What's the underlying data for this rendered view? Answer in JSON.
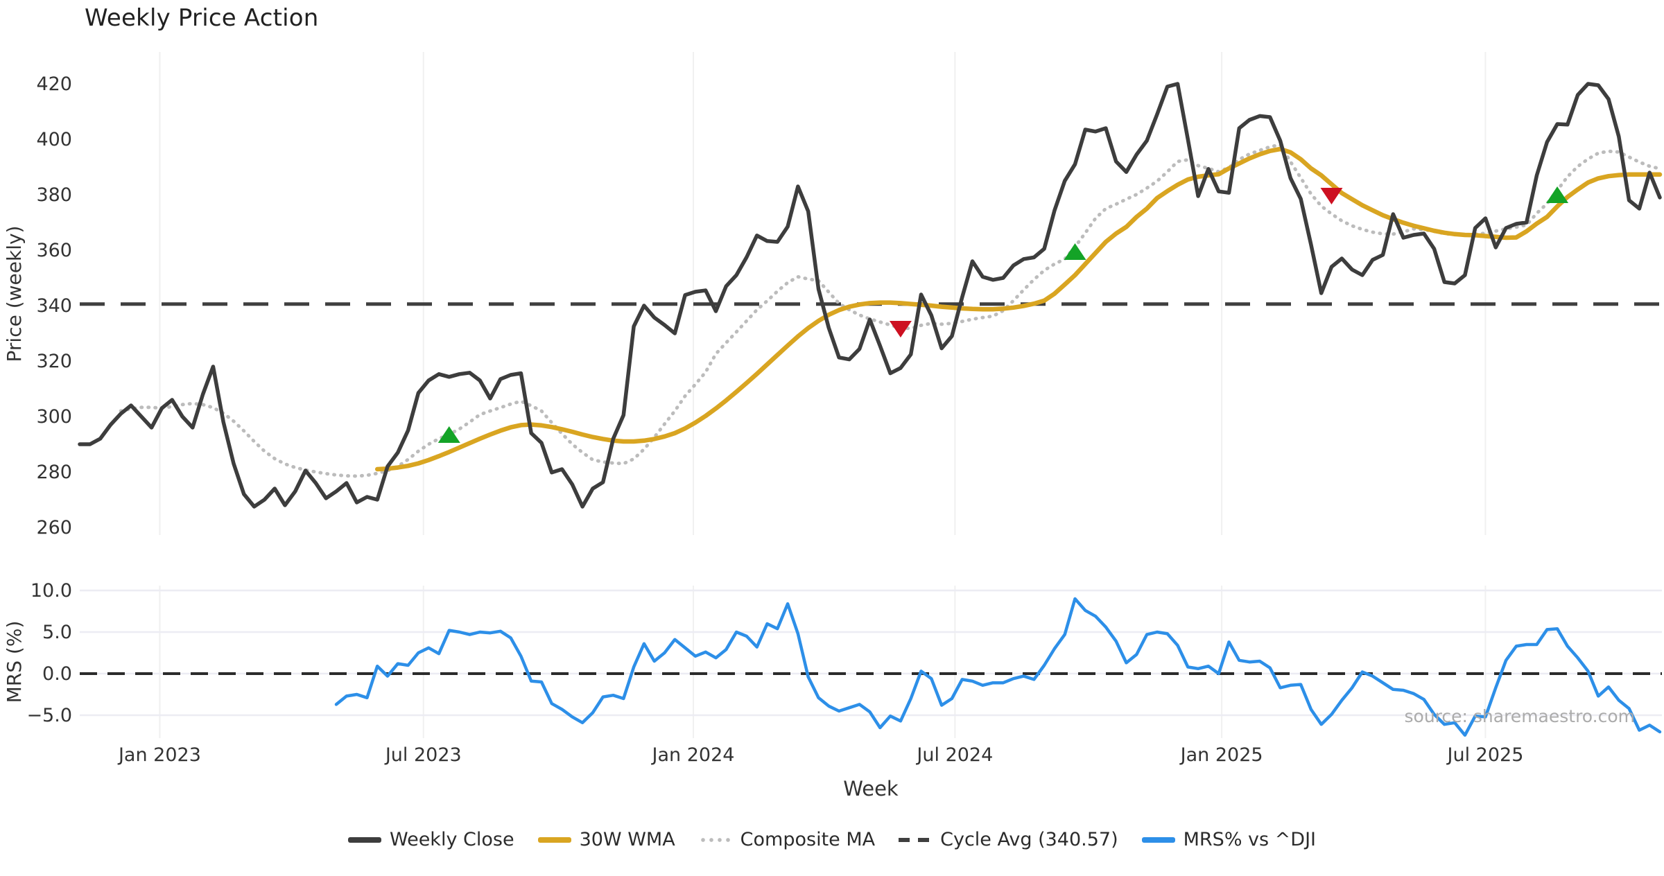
{
  "title": "Weekly Price Action",
  "watermark": "source: sharemaestro.com",
  "xlabel": "Week",
  "xticks": [
    "Jan 2023",
    "Jul 2023",
    "Jan 2024",
    "Jul 2024",
    "Jan 2025",
    "Jul 2025"
  ],
  "price_panel": {
    "ylabel": "Price (weekly)",
    "yticks": [
      420,
      400,
      380,
      360,
      340,
      320,
      300,
      280,
      260
    ]
  },
  "mrs_panel": {
    "ylabel": "MRS (%)",
    "yticks": [
      {
        "label": "10.0",
        "v": 10
      },
      {
        "label": "5.0",
        "v": 5
      },
      {
        "label": "0.0",
        "v": 0
      },
      {
        "label": "−5.0",
        "v": -5
      }
    ]
  },
  "legend": {
    "items": [
      {
        "label": "Weekly Close",
        "style": "solid",
        "color": "#3d3d3d"
      },
      {
        "label": "30W WMA",
        "style": "solid",
        "color": "#d9a521"
      },
      {
        "label": "Composite MA",
        "style": "dotted",
        "color": "#bcbcbc"
      },
      {
        "label": "Cycle Avg (340.57)",
        "style": "dashed",
        "color": "#3f3f3f"
      },
      {
        "label": "MRS% vs ^DJI",
        "style": "solid",
        "color": "#2d8fe8"
      }
    ]
  },
  "chart_data": {
    "type": "line",
    "title": "Weekly Price Action",
    "xlabel": "Week",
    "x_unit": "weekly index, week 0 = early Nov 2022",
    "weeks_span": 154.2,
    "tick_weeks": [
      7.8,
      33.5,
      59.8,
      85.3,
      111.3,
      137.0
    ],
    "tick_labels": [
      "Jan 2023",
      "Jul 2023",
      "Jan 2024",
      "Jul 2024",
      "Jan 2025",
      "Jul 2025"
    ],
    "grid": true,
    "legend_position": "bottom-center",
    "panels": [
      {
        "name": "price",
        "ylabel": "Price (weekly)",
        "ylim": [
          257.25,
          431.5
        ],
        "yticks": [
          420,
          400,
          380,
          360,
          340,
          320,
          300,
          280,
          260
        ],
        "cycle_avg": 340.57,
        "series": [
          {
            "name": "Weekly Close",
            "color": "#3d3d3d",
            "style": "solid",
            "width": 5.5,
            "start_week": 0,
            "values": [
              290,
              290,
              292,
              297,
              301,
              304,
              300,
              296,
              303,
              306,
              300,
              296,
              308,
              318,
              298,
              283,
              272,
              267.5,
              270,
              274,
              268,
              273,
              280.5,
              276,
              270.5,
              273,
              276,
              269,
              271,
              270,
              282,
              287,
              295,
              308.5,
              313,
              315.3,
              314.3,
              315.3,
              315.8,
              313,
              306.5,
              313.5,
              315,
              315.6,
              294,
              290.5,
              279.8,
              281,
              275.5,
              267.5,
              274,
              276.3,
              292,
              300.5,
              332.5,
              340,
              335.7,
              333,
              330,
              343.8,
              345,
              345.5,
              338,
              347,
              351,
              357.5,
              365.3,
              363.3,
              363,
              368.5,
              383,
              374,
              346,
              332,
              321.3,
              320.6,
              324.4,
              335,
              325.5,
              315.6,
              317.5,
              322.4,
              344,
              336.5,
              324.6,
              329,
              343,
              356,
              350.4,
              349.3,
              350,
              354.5,
              356.8,
              357.4,
              360.5,
              374.3,
              385,
              391,
              403.5,
              402.8,
              404,
              392,
              388.2,
              394.5,
              399.5,
              409,
              419,
              420,
              400,
              379.5,
              389.3,
              381.2,
              380.7,
              404,
              407,
              408.4,
              408,
              399.5,
              386,
              378.5,
              362,
              344.5,
              354,
              357,
              353,
              351,
              356.5,
              358.3,
              373,
              364.5,
              365.5,
              366,
              360.5,
              348.5,
              348,
              351,
              368,
              371.5,
              361,
              368,
              369.5,
              370,
              387,
              399,
              405.5,
              405.3,
              416,
              420,
              419.5,
              414.5,
              401,
              378,
              375,
              388,
              379
            ]
          },
          {
            "name": "30W WMA",
            "color": "#d9a521",
            "style": "solid",
            "width": 6.5,
            "start_week": 29,
            "values": [
              281,
              281.2,
              281.6,
              282.2,
              283.1,
              284.3,
              285.7,
              287.2,
              288.8,
              290.4,
              292,
              293.5,
              294.9,
              296.1,
              296.9,
              297.1,
              296.8,
              296.2,
              295.4,
              294.5,
              293.5,
              292.6,
              291.9,
              291.3,
              291,
              291,
              291.3,
              291.9,
              292.8,
              294,
              295.7,
              297.8,
              300.2,
              302.9,
              305.8,
              308.9,
              312.1,
              315.4,
              318.8,
              322.2,
              325.6,
              328.9,
              331.9,
              334.5,
              336.7,
              338.4,
              339.6,
              340.4,
              340.9,
              341.1,
              341.1,
              340.9,
              340.6,
              340.3,
              340,
              339.6,
              339.3,
              339,
              338.8,
              338.7,
              338.7,
              338.9,
              339.3,
              339.9,
              340.7,
              341.8,
              344.3,
              347.6,
              351,
              355,
              359,
              363,
              366,
              368.4,
              372,
              375,
              378.8,
              381.3,
              383.6,
              385.5,
              386.5,
              387,
              387.4,
              389.5,
              391.3,
              393.1,
              394.6,
              395.8,
              396.5,
              395.3,
              392.8,
              389.5,
              387,
              383.8,
              380.6,
              378.4,
              376.2,
              374.4,
              372.6,
              371.2,
              369.9,
              368.8,
              367.9,
              367,
              366.3,
              365.8,
              365.5,
              365.4,
              365.1,
              364.8,
              364.5,
              364.6,
              366.8,
              369.6,
              372,
              375.8,
              379.2,
              381.9,
              384.4,
              385.9,
              386.7,
              387.1,
              387.3,
              387.3,
              387.3,
              387.3
            ]
          },
          {
            "name": "Composite MA",
            "color": "#bcbcbc",
            "style": "dotted",
            "width": 5,
            "start_week": 4,
            "values": [
              302,
              302.8,
              303.3,
              303.3,
              303,
              303.6,
              304.3,
              304.7,
              304.3,
              303.2,
              301.2,
              298.3,
              294.8,
              291,
              287.5,
              284.8,
              282.9,
              281.6,
              280.7,
              280,
              279.4,
              278.9,
              278.6,
              278.5,
              278.8,
              279.5,
              280.5,
              282,
              284.5,
              287.5,
              290,
              292,
              293.6,
              295.5,
              298,
              300.7,
              302,
              303.2,
              304.5,
              305.5,
              303.9,
              302,
              297.8,
              293.8,
              290,
              287,
              284.4,
              283.6,
              283.2,
              283,
              284.7,
              288.2,
              292.5,
              297.3,
              302,
              307.4,
              311.6,
              316,
              322.6,
              326.6,
              330.5,
              334.5,
              338.5,
              341.7,
              345.2,
              348.3,
              350.4,
              349.6,
              349,
              344.9,
              340.8,
              338.5,
              336.6,
              335.2,
              334.1,
              333,
              331.9,
              331.8,
              332.9,
              333.6,
              333.3,
              333.6,
              334.3,
              335.1,
              335.7,
              336.2,
              338.2,
              341.8,
              345.7,
              349.4,
              352.7,
              355,
              356.8,
              361.2,
              366.2,
              371.5,
              375,
              376.6,
              378.4,
              380.1,
              382.4,
              384.9,
              388.3,
              392,
              392.6,
              390.5,
              389.5,
              388.3,
              389.8,
              392.7,
              394.7,
              396,
              397.3,
              398,
              391.9,
              386.1,
              380.3,
              375.9,
              373.1,
              370.6,
              368.8,
              367.5,
              366.5,
              365.9,
              365.8,
              366.6,
              367.7,
              367.4,
              366.8,
              366,
              365.6,
              365.5,
              365.8,
              366.1,
              366.9,
              367.7,
              368.3,
              369.1,
              373.3,
              376.8,
              381.6,
              386.5,
              390.2,
              392.9,
              395,
              395.7,
              395.4,
              393.6,
              391.8,
              390.3,
              389.4
            ]
          },
          {
            "name": "Cycle Avg",
            "color": "#3f3f3f",
            "style": "dashed",
            "width": 5,
            "constant": 340.57
          }
        ],
        "markers": {
          "buy": {
            "color": "#14a327",
            "shape": "triangle-up",
            "points": [
              {
                "week": 36,
                "price": 293.5
              },
              {
                "week": 97,
                "price": 359.5
              },
              {
                "week": 144,
                "price": 380
              }
            ]
          },
          "sell": {
            "color": "#cd1021",
            "shape": "triangle-down",
            "points": [
              {
                "week": 80,
                "price": 331.5
              },
              {
                "week": 122,
                "price": 379.5
              }
            ]
          }
        }
      },
      {
        "name": "mrs",
        "ylabel": "MRS (%)",
        "ylim": [
          -7.75,
          10.58
        ],
        "yticks": [
          10,
          5,
          0,
          -5
        ],
        "zero_line": 0,
        "gridline_values": [
          10,
          5,
          -5
        ],
        "series": [
          {
            "name": "MRS% vs ^DJI",
            "color": "#2d8fe8",
            "style": "solid",
            "width": 4.5,
            "start_week": 25,
            "values": [
              -3.7,
              -2.7,
              -2.5,
              -2.9,
              0.9,
              -0.3,
              1.2,
              1.0,
              2.5,
              3.1,
              2.4,
              5.2,
              5.0,
              4.7,
              5.0,
              4.9,
              5.1,
              4.3,
              2.1,
              -0.9,
              -1.0,
              -3.6,
              -4.3,
              -5.2,
              -5.9,
              -4.7,
              -2.8,
              -2.6,
              -3.0,
              0.8,
              3.6,
              1.5,
              2.5,
              4.1,
              3.1,
              2.1,
              2.6,
              1.9,
              2.9,
              5.0,
              4.5,
              3.2,
              6.0,
              5.4,
              8.4,
              4.8,
              -0.4,
              -2.9,
              -3.9,
              -4.5,
              -4.1,
              -3.7,
              -4.6,
              -6.5,
              -5.1,
              -5.7,
              -3.0,
              0.3,
              -0.6,
              -3.8,
              -3.0,
              -0.7,
              -0.9,
              -1.4,
              -1.1,
              -1.1,
              -0.6,
              -0.3,
              -0.7,
              1.0,
              3.0,
              4.7,
              9.0,
              7.6,
              6.9,
              5.6,
              3.9,
              1.3,
              2.3,
              4.7,
              5.0,
              4.8,
              3.4,
              0.8,
              0.6,
              0.9,
              0.0,
              3.8,
              1.6,
              1.4,
              1.5,
              0.7,
              -1.7,
              -1.4,
              -1.3,
              -4.3,
              -6.1,
              -4.9,
              -3.2,
              -1.7,
              0.2,
              -0.3,
              -1.1,
              -1.9,
              -2.0,
              -2.4,
              -3.1,
              -4.9,
              -6.1,
              -5.9,
              -7.4,
              -5.1,
              -5.2,
              -1.7,
              1.6,
              3.3,
              3.5,
              3.5,
              5.3,
              5.4,
              3.3,
              1.9,
              0.3,
              -2.7,
              -1.6,
              -3.2,
              -4.2,
              -6.8,
              -6.2,
              -7.0
            ]
          }
        ]
      }
    ]
  }
}
